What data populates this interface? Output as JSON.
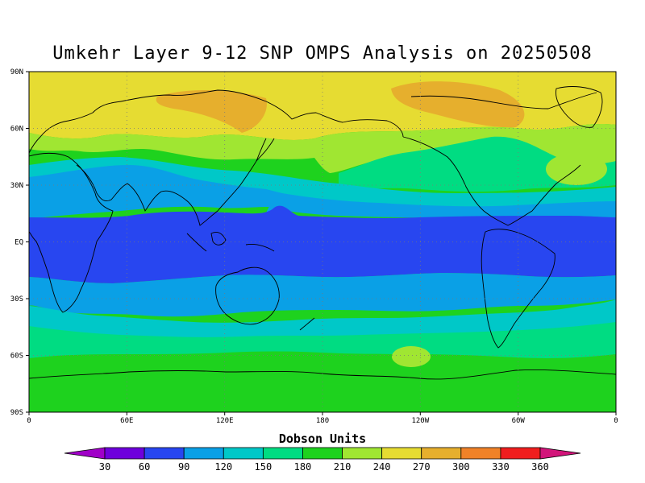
{
  "title": "Umkehr Layer 9-12 SNP OMPS Analysis on 20250508",
  "chart_data": {
    "type": "heatmap",
    "projection": "equirectangular, 0 to 360 longitude",
    "field": "ozone column, Umkehr layers 9-12",
    "units": "Dobson Units",
    "lat_ticks": [
      "90N",
      "60N",
      "30N",
      "EQ",
      "30S",
      "60S",
      "90S"
    ],
    "lon_ticks": [
      "0",
      "60E",
      "120E",
      "180",
      "120W",
      "60W",
      "0"
    ],
    "colorbar": {
      "title": "Dobson Units",
      "levels": [
        30,
        60,
        90,
        120,
        150,
        180,
        210,
        240,
        270,
        300,
        330,
        360
      ],
      "colors": [
        "#a000c8",
        "#6e00dc",
        "#2846f0",
        "#0aa0e6",
        "#00c8c8",
        "#00dc82",
        "#1ed21e",
        "#a0e632",
        "#e6dc32",
        "#e6af2d",
        "#f08228",
        "#f01e1e",
        "#d2147a"
      ]
    },
    "zonal_bands": [
      {
        "lat_range": [
          60,
          90
        ],
        "value_range": [
          240,
          300
        ],
        "color": "#e6dc32"
      },
      {
        "lat_range": [
          40,
          60
        ],
        "value_range": [
          210,
          270
        ],
        "color": "#a0e632"
      },
      {
        "lat_range": [
          20,
          40
        ],
        "value_range": [
          120,
          180
        ],
        "color": "#0aa0e6"
      },
      {
        "lat_range": [
          -20,
          12
        ],
        "value_range": [
          60,
          90
        ],
        "color": "#2846f0"
      },
      {
        "lat_range": [
          -40,
          -20
        ],
        "value_range": [
          90,
          150
        ],
        "color": "#0aa0e6"
      },
      {
        "lat_range": [
          -90,
          -50
        ],
        "value_range": [
          180,
          240
        ],
        "color": "#1ed21e"
      }
    ]
  }
}
